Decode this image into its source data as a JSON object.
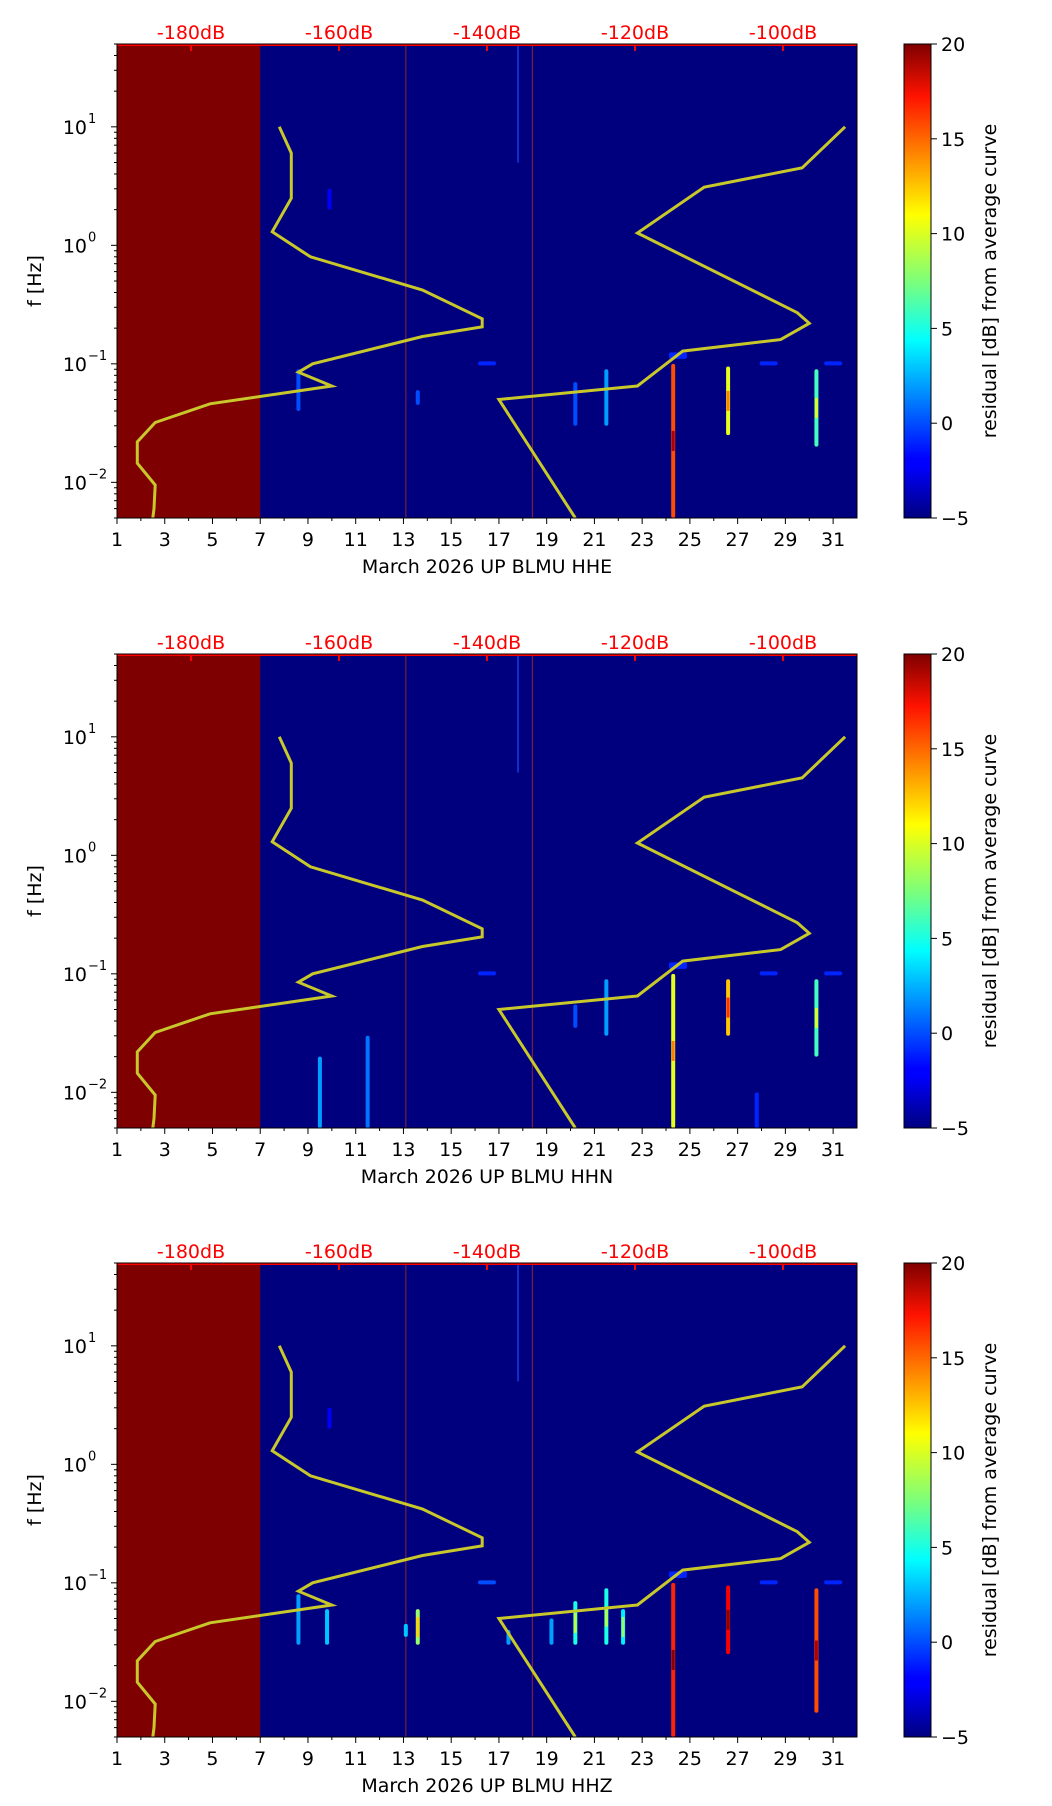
{
  "chart_data": [
    {
      "type": "heatmap",
      "title": "",
      "xlabel": "March 2026 UP BLMU  HHE",
      "ylabel": "f [Hz]",
      "xlim": [
        1,
        32
      ],
      "ylim": [
        0.005,
        50
      ],
      "yscale": "log",
      "x_ticks": [
        "1",
        "3",
        "5",
        "7",
        "9",
        "11",
        "13",
        "15",
        "17",
        "19",
        "21",
        "23",
        "25",
        "27",
        "29",
        "31"
      ],
      "y_ticks": [
        {
          "base": "10",
          "exp": "1",
          "value": 10
        },
        {
          "base": "10",
          "exp": "0",
          "value": 1
        },
        {
          "base": "10",
          "exp": "−1",
          "value": 0.1
        },
        {
          "base": "10",
          "exp": "−2",
          "value": 0.01
        }
      ],
      "db_axis_labels": [
        "-180dB",
        "-160dB",
        "-140dB",
        "-120dB",
        "-100dB"
      ],
      "colorbar": {
        "label": "residual [dB] from average curve",
        "min": -5,
        "max": 20,
        "ticks": [
          "−5",
          "0",
          "5",
          "10",
          "15",
          "20"
        ]
      },
      "no_data_until_day": 7,
      "average_curve": [
        {
          "x": 2.5,
          "f": 0.005
        },
        {
          "x": 2.55,
          "f": 0.006
        },
        {
          "x": 2.6,
          "f": 0.0095
        },
        {
          "x": 1.85,
          "f": 0.0145
        },
        {
          "x": 1.85,
          "f": 0.022
        },
        {
          "x": 2.6,
          "f": 0.032
        },
        {
          "x": 4.9,
          "f": 0.046
        },
        {
          "x": 10.0,
          "f": 0.065
        },
        {
          "x": 8.6,
          "f": 0.085
        },
        {
          "x": 9.2,
          "f": 0.1
        },
        {
          "x": 13.8,
          "f": 0.17
        },
        {
          "x": 16.3,
          "f": 0.205
        },
        {
          "x": 16.3,
          "f": 0.24
        },
        {
          "x": 13.8,
          "f": 0.42
        },
        {
          "x": 9.1,
          "f": 0.8
        },
        {
          "x": 7.5,
          "f": 1.3
        },
        {
          "x": 8.3,
          "f": 2.5
        },
        {
          "x": 8.3,
          "f": 6
        },
        {
          "x": 7.8,
          "f": 10
        }
      ],
      "noise_curve": [
        {
          "x": 20.2,
          "f": 0.005
        },
        {
          "x": 17.0,
          "f": 0.05
        },
        {
          "x": 22.8,
          "f": 0.065
        },
        {
          "x": 24.7,
          "f": 0.128
        },
        {
          "x": 28.8,
          "f": 0.16
        },
        {
          "x": 30.0,
          "f": 0.22
        },
        {
          "x": 29.5,
          "f": 0.27
        },
        {
          "x": 22.8,
          "f": 1.27
        },
        {
          "x": 25.6,
          "f": 3.1
        },
        {
          "x": 29.7,
          "f": 4.5
        },
        {
          "x": 31.5,
          "f": 10
        }
      ],
      "events": [
        {
          "x": 24.3,
          "f_lo": 0.005,
          "f_hi": 0.1,
          "peak": 15
        },
        {
          "x": 26.6,
          "f_lo": 0.025,
          "f_hi": 0.095,
          "peak": 10
        },
        {
          "x": 30.3,
          "f_lo": 0.02,
          "f_hi": 0.09,
          "peak": 6
        },
        {
          "x": 21.5,
          "f_lo": 0.03,
          "f_hi": 0.09,
          "peak": 2
        },
        {
          "x": 20.2,
          "f_lo": 0.03,
          "f_hi": 0.07,
          "peak": 0
        },
        {
          "x": 13.6,
          "f_lo": 0.045,
          "f_hi": 0.06,
          "peak": 0
        },
        {
          "x": 8.6,
          "f_lo": 0.04,
          "f_hi": 0.09,
          "peak": 0
        },
        {
          "x": 16.5,
          "f_lo": 0.098,
          "f_hi": 0.105,
          "peak": -1
        },
        {
          "x": 24.5,
          "f_lo": 0.11,
          "f_hi": 0.125,
          "peak": -1
        },
        {
          "x": 28.3,
          "f_lo": 0.098,
          "f_hi": 0.105,
          "peak": -1
        },
        {
          "x": 31.0,
          "f_lo": 0.098,
          "f_hi": 0.105,
          "peak": -1
        },
        {
          "x": 9.9,
          "f_lo": 2,
          "f_hi": 3,
          "peak": -2
        }
      ]
    },
    {
      "type": "heatmap",
      "title": "",
      "xlabel": "March 2026 UP BLMU  HHN",
      "ylabel": "f [Hz]",
      "xlim": [
        1,
        32
      ],
      "ylim": [
        0.005,
        50
      ],
      "yscale": "log",
      "x_ticks": [
        "1",
        "3",
        "5",
        "7",
        "9",
        "11",
        "13",
        "15",
        "17",
        "19",
        "21",
        "23",
        "25",
        "27",
        "29",
        "31"
      ],
      "y_ticks": [
        {
          "base": "10",
          "exp": "1",
          "value": 10
        },
        {
          "base": "10",
          "exp": "0",
          "value": 1
        },
        {
          "base": "10",
          "exp": "−1",
          "value": 0.1
        },
        {
          "base": "10",
          "exp": "−2",
          "value": 0.01
        }
      ],
      "db_axis_labels": [
        "-180dB",
        "-160dB",
        "-140dB",
        "-120dB",
        "-100dB"
      ],
      "colorbar": {
        "label": "residual [dB] from average curve",
        "min": -5,
        "max": 20,
        "ticks": [
          "−5",
          "0",
          "5",
          "10",
          "15",
          "20"
        ]
      },
      "no_data_until_day": 7,
      "average_curve": [
        {
          "x": 2.5,
          "f": 0.005
        },
        {
          "x": 2.55,
          "f": 0.006
        },
        {
          "x": 2.6,
          "f": 0.0095
        },
        {
          "x": 1.85,
          "f": 0.0145
        },
        {
          "x": 1.85,
          "f": 0.022
        },
        {
          "x": 2.6,
          "f": 0.032
        },
        {
          "x": 4.9,
          "f": 0.046
        },
        {
          "x": 10.0,
          "f": 0.065
        },
        {
          "x": 8.6,
          "f": 0.085
        },
        {
          "x": 9.2,
          "f": 0.1
        },
        {
          "x": 13.8,
          "f": 0.17
        },
        {
          "x": 16.3,
          "f": 0.205
        },
        {
          "x": 16.3,
          "f": 0.24
        },
        {
          "x": 13.8,
          "f": 0.42
        },
        {
          "x": 9.1,
          "f": 0.8
        },
        {
          "x": 7.5,
          "f": 1.3
        },
        {
          "x": 8.3,
          "f": 2.5
        },
        {
          "x": 8.3,
          "f": 6
        },
        {
          "x": 7.8,
          "f": 10
        }
      ],
      "noise_curve": [
        {
          "x": 20.2,
          "f": 0.005
        },
        {
          "x": 17.0,
          "f": 0.05
        },
        {
          "x": 22.8,
          "f": 0.065
        },
        {
          "x": 24.7,
          "f": 0.128
        },
        {
          "x": 28.8,
          "f": 0.16
        },
        {
          "x": 30.0,
          "f": 0.22
        },
        {
          "x": 29.5,
          "f": 0.27
        },
        {
          "x": 22.8,
          "f": 1.27
        },
        {
          "x": 25.6,
          "f": 3.1
        },
        {
          "x": 29.7,
          "f": 4.5
        },
        {
          "x": 31.5,
          "f": 10
        }
      ],
      "events": [
        {
          "x": 24.3,
          "f_lo": 0.005,
          "f_hi": 0.1,
          "peak": 10
        },
        {
          "x": 26.6,
          "f_lo": 0.03,
          "f_hi": 0.09,
          "peak": 12
        },
        {
          "x": 30.3,
          "f_lo": 0.02,
          "f_hi": 0.09,
          "peak": 6
        },
        {
          "x": 21.5,
          "f_lo": 0.03,
          "f_hi": 0.09,
          "peak": 2
        },
        {
          "x": 20.2,
          "f_lo": 0.035,
          "f_hi": 0.055,
          "peak": 0
        },
        {
          "x": 9.5,
          "f_lo": 0.005,
          "f_hi": 0.02,
          "peak": 2
        },
        {
          "x": 11.5,
          "f_lo": 0.005,
          "f_hi": 0.03,
          "peak": 1
        },
        {
          "x": 16.5,
          "f_lo": 0.098,
          "f_hi": 0.105,
          "peak": -1
        },
        {
          "x": 24.5,
          "f_lo": 0.11,
          "f_hi": 0.125,
          "peak": -1
        },
        {
          "x": 28.3,
          "f_lo": 0.098,
          "f_hi": 0.105,
          "peak": -1
        },
        {
          "x": 31.0,
          "f_lo": 0.098,
          "f_hi": 0.105,
          "peak": -1
        },
        {
          "x": 27.8,
          "f_lo": 0.005,
          "f_hi": 0.01,
          "peak": -1
        }
      ]
    },
    {
      "type": "heatmap",
      "title": "",
      "xlabel": "March 2026 UP BLMU  HHZ",
      "ylabel": "f [Hz]",
      "xlim": [
        1,
        32
      ],
      "ylim": [
        0.005,
        50
      ],
      "yscale": "log",
      "x_ticks": [
        "1",
        "3",
        "5",
        "7",
        "9",
        "11",
        "13",
        "15",
        "17",
        "19",
        "21",
        "23",
        "25",
        "27",
        "29",
        "31"
      ],
      "y_ticks": [
        {
          "base": "10",
          "exp": "1",
          "value": 10
        },
        {
          "base": "10",
          "exp": "0",
          "value": 1
        },
        {
          "base": "10",
          "exp": "−1",
          "value": 0.1
        },
        {
          "base": "10",
          "exp": "−2",
          "value": 0.01
        }
      ],
      "db_axis_labels": [
        "-180dB",
        "-160dB",
        "-140dB",
        "-120dB",
        "-100dB"
      ],
      "colorbar": {
        "label": "residual [dB] from average curve",
        "min": -5,
        "max": 20,
        "ticks": [
          "−5",
          "0",
          "5",
          "10",
          "15",
          "20"
        ]
      },
      "no_data_until_day": 7,
      "average_curve": [
        {
          "x": 2.5,
          "f": 0.005
        },
        {
          "x": 2.55,
          "f": 0.006
        },
        {
          "x": 2.6,
          "f": 0.0095
        },
        {
          "x": 1.85,
          "f": 0.0145
        },
        {
          "x": 1.85,
          "f": 0.022
        },
        {
          "x": 2.6,
          "f": 0.032
        },
        {
          "x": 4.9,
          "f": 0.046
        },
        {
          "x": 10.0,
          "f": 0.065
        },
        {
          "x": 8.6,
          "f": 0.085
        },
        {
          "x": 9.2,
          "f": 0.1
        },
        {
          "x": 13.8,
          "f": 0.17
        },
        {
          "x": 16.3,
          "f": 0.205
        },
        {
          "x": 16.3,
          "f": 0.24
        },
        {
          "x": 13.8,
          "f": 0.42
        },
        {
          "x": 9.1,
          "f": 0.8
        },
        {
          "x": 7.5,
          "f": 1.3
        },
        {
          "x": 8.3,
          "f": 2.5
        },
        {
          "x": 8.3,
          "f": 6
        },
        {
          "x": 7.8,
          "f": 10
        }
      ],
      "noise_curve": [
        {
          "x": 20.2,
          "f": 0.005
        },
        {
          "x": 17.0,
          "f": 0.05
        },
        {
          "x": 22.8,
          "f": 0.065
        },
        {
          "x": 24.7,
          "f": 0.128
        },
        {
          "x": 28.8,
          "f": 0.16
        },
        {
          "x": 30.0,
          "f": 0.22
        },
        {
          "x": 29.5,
          "f": 0.27
        },
        {
          "x": 22.8,
          "f": 1.27
        },
        {
          "x": 25.6,
          "f": 3.1
        },
        {
          "x": 29.7,
          "f": 4.5
        },
        {
          "x": 31.5,
          "f": 10
        }
      ],
      "events": [
        {
          "x": 24.3,
          "f_lo": 0.005,
          "f_hi": 0.1,
          "peak": 16
        },
        {
          "x": 26.6,
          "f_lo": 0.025,
          "f_hi": 0.095,
          "peak": 17
        },
        {
          "x": 30.3,
          "f_lo": 0.008,
          "f_hi": 0.09,
          "peak": 15
        },
        {
          "x": 21.5,
          "f_lo": 0.03,
          "f_hi": 0.09,
          "peak": 5
        },
        {
          "x": 20.2,
          "f_lo": 0.03,
          "f_hi": 0.07,
          "peak": 5
        },
        {
          "x": 22.2,
          "f_lo": 0.03,
          "f_hi": 0.06,
          "peak": 4
        },
        {
          "x": 19.2,
          "f_lo": 0.03,
          "f_hi": 0.05,
          "peak": 2
        },
        {
          "x": 13.6,
          "f_lo": 0.03,
          "f_hi": 0.06,
          "peak": 8
        },
        {
          "x": 13.1,
          "f_lo": 0.035,
          "f_hi": 0.045,
          "peak": 3
        },
        {
          "x": 8.6,
          "f_lo": 0.03,
          "f_hi": 0.08,
          "peak": 2
        },
        {
          "x": 9.8,
          "f_lo": 0.03,
          "f_hi": 0.06,
          "peak": 3
        },
        {
          "x": 17.4,
          "f_lo": 0.03,
          "f_hi": 0.04,
          "peak": 2
        },
        {
          "x": 16.5,
          "f_lo": 0.098,
          "f_hi": 0.105,
          "peak": 0
        },
        {
          "x": 24.5,
          "f_lo": 0.11,
          "f_hi": 0.125,
          "peak": -1
        },
        {
          "x": 28.3,
          "f_lo": 0.098,
          "f_hi": 0.105,
          "peak": -1
        },
        {
          "x": 31.0,
          "f_lo": 0.098,
          "f_hi": 0.105,
          "peak": -1
        },
        {
          "x": 9.9,
          "f_lo": 2,
          "f_hi": 3,
          "peak": -2
        }
      ]
    }
  ],
  "colors": {
    "background": "#00007f",
    "no_data": "#7f0000",
    "curve": "#c8c82a",
    "db_axis": "#ff0000",
    "vline": "#b03020"
  }
}
